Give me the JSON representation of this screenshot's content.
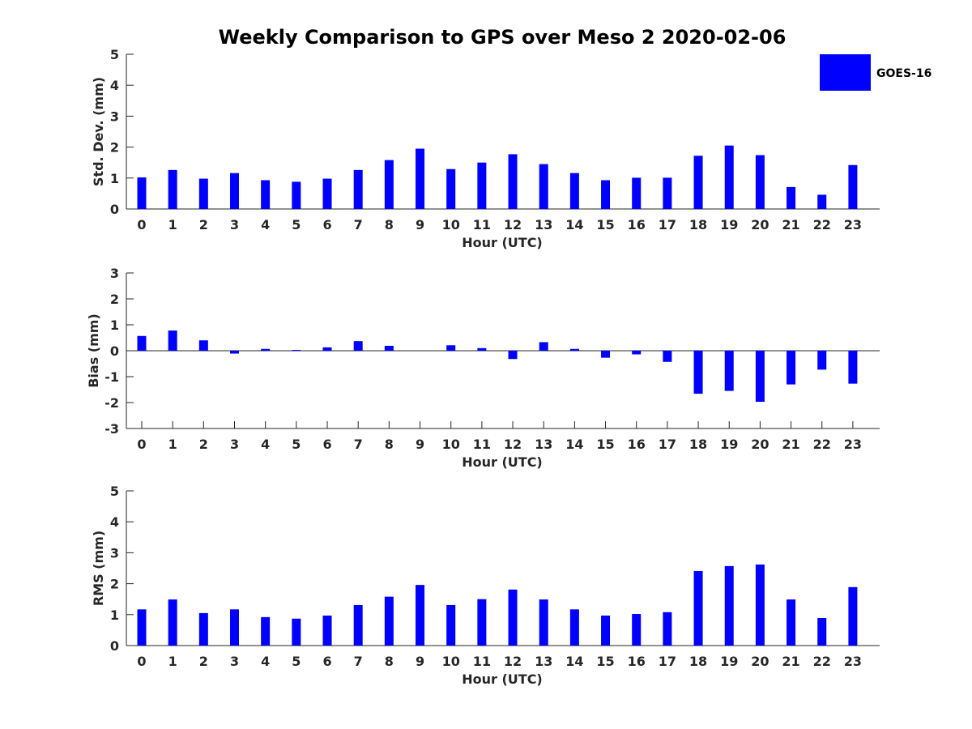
{
  "title": "Weekly Comparison to GPS over Meso 2 2020-02-06",
  "legend": {
    "label": "GOES-16",
    "color": "#0000ff"
  },
  "colors": {
    "bar": "#0000ff",
    "axis": "#262626"
  },
  "chart_data": [
    {
      "type": "bar",
      "name": "std-dev",
      "categories": [
        "0",
        "1",
        "2",
        "3",
        "4",
        "5",
        "6",
        "7",
        "8",
        "9",
        "10",
        "11",
        "12",
        "13",
        "14",
        "15",
        "16",
        "17",
        "18",
        "19",
        "20",
        "21",
        "22",
        "23"
      ],
      "series": [
        {
          "name": "GOES-16",
          "values": [
            1.02,
            1.26,
            0.98,
            1.16,
            0.93,
            0.88,
            0.98,
            1.26,
            1.58,
            1.95,
            1.29,
            1.5,
            1.77,
            1.45,
            1.16,
            0.93,
            1.01,
            1.01,
            1.72,
            2.05,
            1.74,
            0.71,
            0.46,
            1.42
          ]
        }
      ],
      "xlabel": "Hour (UTC)",
      "ylabel": "Std. Dev. (mm)",
      "ylim": [
        0,
        5
      ],
      "yticks": [
        "0",
        "1",
        "2",
        "3",
        "4",
        "5"
      ]
    },
    {
      "type": "bar",
      "name": "bias",
      "categories": [
        "0",
        "1",
        "2",
        "3",
        "4",
        "5",
        "6",
        "7",
        "8",
        "9",
        "10",
        "11",
        "12",
        "13",
        "14",
        "15",
        "16",
        "17",
        "18",
        "19",
        "20",
        "21",
        "22",
        "23"
      ],
      "series": [
        {
          "name": "GOES-16",
          "values": [
            0.57,
            0.78,
            0.4,
            -0.11,
            0.07,
            0.03,
            0.13,
            0.37,
            0.19,
            0.0,
            0.21,
            0.1,
            -0.32,
            0.33,
            0.07,
            -0.27,
            -0.14,
            -0.43,
            -1.66,
            -1.55,
            -1.97,
            -1.3,
            -0.73,
            -1.27
          ]
        }
      ],
      "xlabel": "Hour (UTC)",
      "ylabel": "Bias (mm)",
      "ylim": [
        -3,
        3
      ],
      "yticks": [
        "-3",
        "-2",
        "-1",
        "0",
        "1",
        "2",
        "3"
      ]
    },
    {
      "type": "bar",
      "name": "rms",
      "categories": [
        "0",
        "1",
        "2",
        "3",
        "4",
        "5",
        "6",
        "7",
        "8",
        "9",
        "10",
        "11",
        "12",
        "13",
        "14",
        "15",
        "16",
        "17",
        "18",
        "19",
        "20",
        "21",
        "22",
        "23"
      ],
      "series": [
        {
          "name": "GOES-16",
          "values": [
            1.17,
            1.49,
            1.05,
            1.17,
            0.92,
            0.87,
            0.97,
            1.31,
            1.58,
            1.96,
            1.31,
            1.5,
            1.81,
            1.49,
            1.17,
            0.97,
            1.02,
            1.08,
            2.41,
            2.57,
            2.62,
            1.49,
            0.89,
            1.89
          ]
        }
      ],
      "xlabel": "Hour (UTC)",
      "ylabel": "RMS (mm)",
      "ylim": [
        0,
        5
      ],
      "yticks": [
        "0",
        "1",
        "2",
        "3",
        "4",
        "5"
      ]
    }
  ]
}
